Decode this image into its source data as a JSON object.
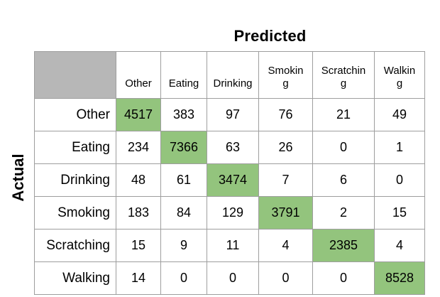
{
  "titles": {
    "predicted": "Predicted",
    "actual": "Actual"
  },
  "colors": {
    "diagonal_highlight": "#93c47d",
    "corner_cell_gray": "#b7b7b7",
    "border_gray": "#9e9e9e",
    "text": "#000000"
  },
  "table": {
    "corner_label": "",
    "column_headers_display": [
      "Other",
      "Eating",
      "Drinking",
      "Smokin\ng",
      "Scratchin\ng",
      "Walkin\ng"
    ]
  },
  "chart_data": {
    "type": "heatmap",
    "title": "",
    "xlabel": "Predicted",
    "ylabel": "Actual",
    "x_categories": [
      "Other",
      "Eating",
      "Drinking",
      "Smoking",
      "Scratching",
      "Walking"
    ],
    "y_categories": [
      "Other",
      "Eating",
      "Drinking",
      "Smoking",
      "Scratching",
      "Walking"
    ],
    "matrix": [
      [
        4517,
        383,
        97,
        76,
        21,
        49
      ],
      [
        234,
        7366,
        63,
        26,
        0,
        1
      ],
      [
        48,
        61,
        3474,
        7,
        6,
        0
      ],
      [
        183,
        84,
        129,
        3791,
        2,
        15
      ],
      [
        15,
        9,
        11,
        4,
        2385,
        4
      ],
      [
        14,
        0,
        0,
        0,
        0,
        8528
      ]
    ],
    "diagonal_highlighted": true,
    "legend": "none"
  }
}
